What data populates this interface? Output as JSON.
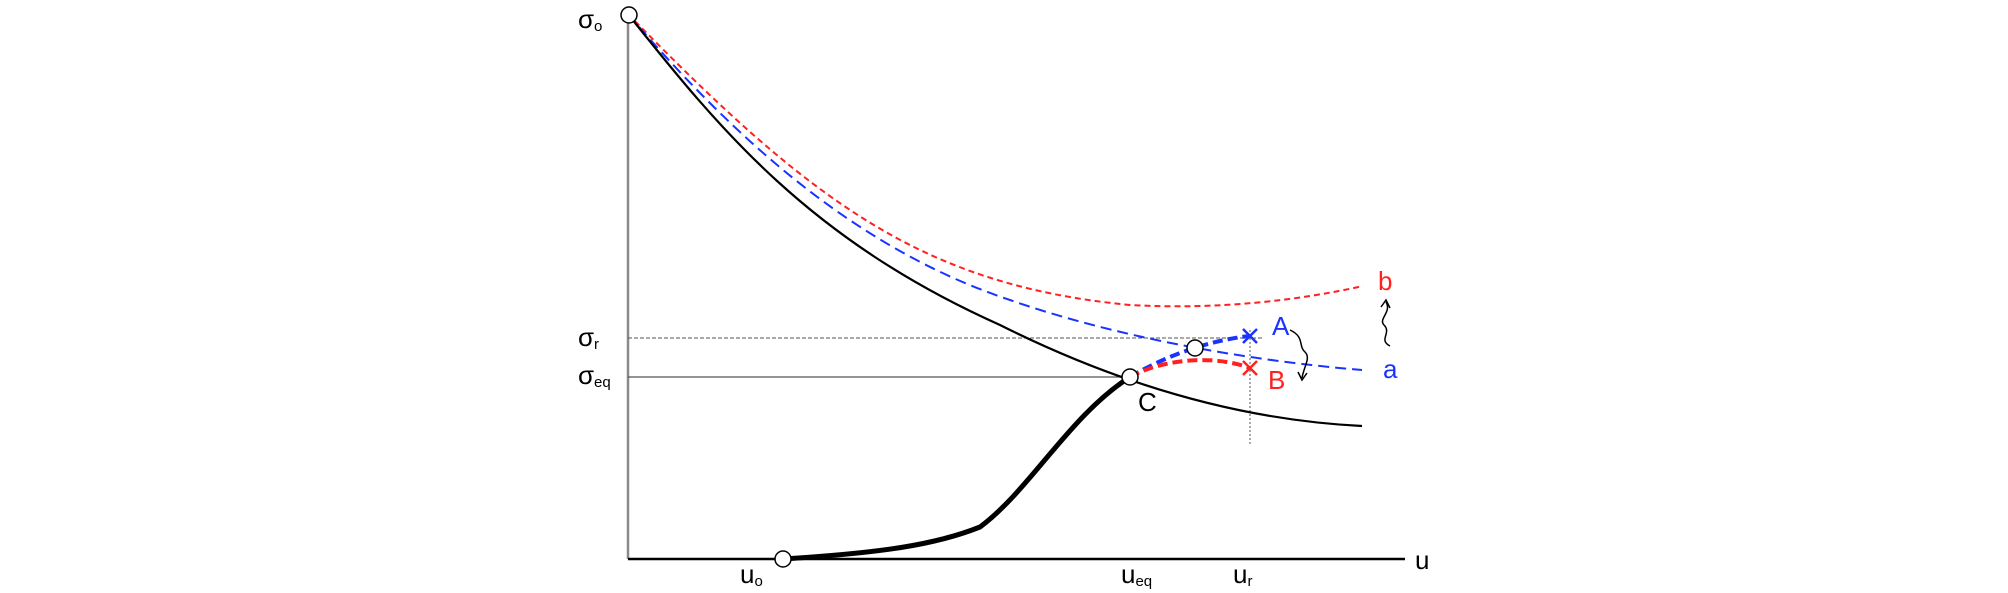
{
  "colors": {
    "ground": "#000000",
    "curve_a": "#1a33ff",
    "curve_b": "#ff2020",
    "axes": "#000000",
    "guides": "#444444"
  },
  "labels": {
    "y_sigma_o": {
      "base": "σ",
      "sub": "o"
    },
    "y_sigma_r": {
      "base": "σ",
      "sub": "r"
    },
    "y_sigma_eq": {
      "base": "σ",
      "sub": "eq"
    },
    "x_u": "u",
    "x_u_o": {
      "base": "u",
      "sub": "o"
    },
    "x_u_eq": {
      "base": "u",
      "sub": "eq"
    },
    "x_u_r": {
      "base": "u",
      "sub": "r"
    },
    "curve_a": "a",
    "curve_b": "b",
    "point_A": "A",
    "point_B": "B",
    "point_C": "C"
  }
}
